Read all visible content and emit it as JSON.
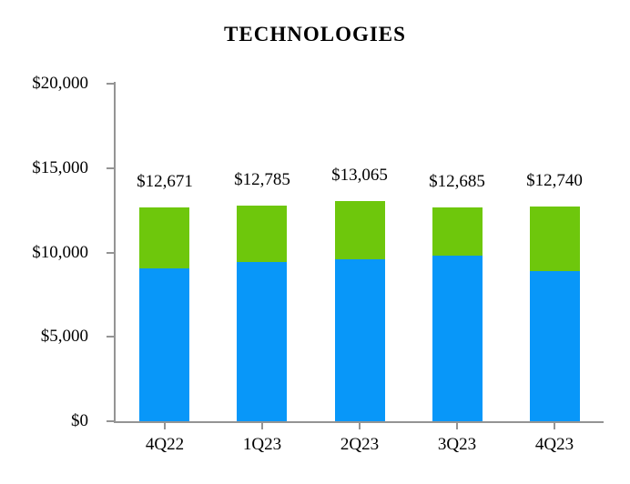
{
  "chart_data": {
    "type": "bar",
    "stacked": true,
    "title": "TECHNOLOGIES",
    "categories": [
      "4Q22",
      "1Q23",
      "2Q23",
      "3Q23",
      "4Q23"
    ],
    "series": [
      {
        "name": "blue-bottom-segment",
        "color": "#0897F9",
        "values": [
          9030,
          9460,
          9620,
          9790,
          8870
        ]
      },
      {
        "name": "green-top-segment",
        "color": "#6EC70C",
        "values": [
          3641,
          3325,
          3445,
          2895,
          3870
        ]
      }
    ],
    "totals": [
      12671,
      12785,
      13065,
      12685,
      12740
    ],
    "total_labels": [
      "$12,671",
      "$12,785",
      "$13,065",
      "$12,685",
      "$12,740"
    ],
    "xlabel": "",
    "ylabel": "",
    "ylim": [
      0,
      20000
    ],
    "y_ticks": [
      {
        "value": 0,
        "label": "$0"
      },
      {
        "value": 5000,
        "label": "$5,000"
      },
      {
        "value": 10000,
        "label": "$10,000"
      },
      {
        "value": 15000,
        "label": "$15,000"
      },
      {
        "value": 20000,
        "label": "$20,000"
      }
    ],
    "grid": false,
    "legend": "none",
    "axis_color": "#949494",
    "text_color": "#000000",
    "background": "#FFFFFF"
  }
}
